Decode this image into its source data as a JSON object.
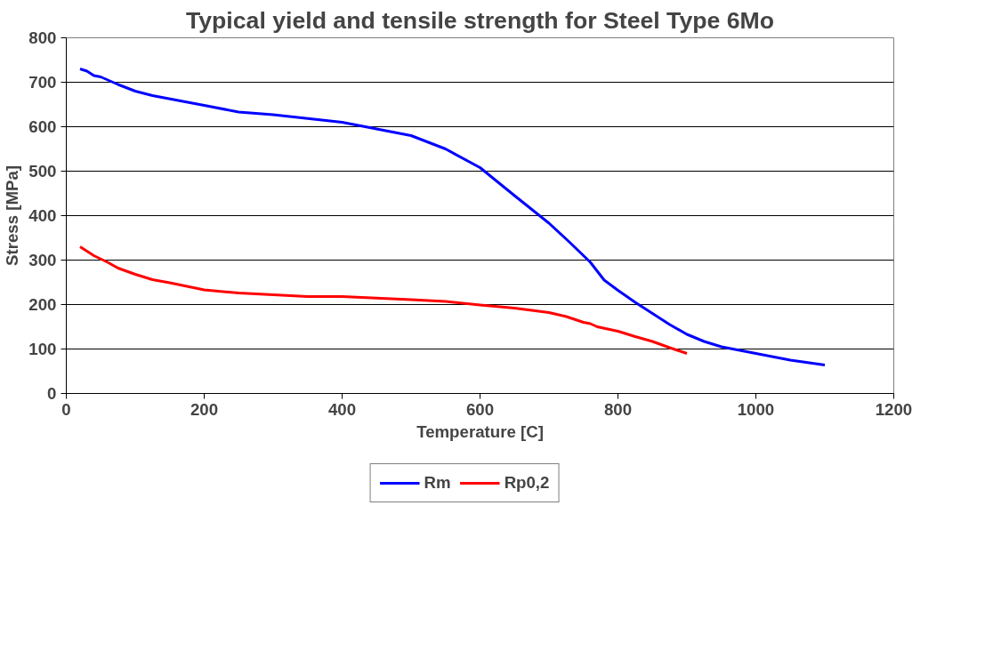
{
  "chart_data": {
    "type": "line",
    "title": "Typical yield and tensile strength for Steel Type 6Mo",
    "xlabel": "Temperature [C]",
    "ylabel": "Stress [MPa]",
    "xlim": [
      0,
      1200
    ],
    "xticks": [
      0,
      200,
      400,
      600,
      800,
      1000,
      1200
    ],
    "ylim": [
      0,
      800
    ],
    "yticks": [
      0,
      100,
      200,
      300,
      400,
      500,
      600,
      700,
      800
    ],
    "grid": "y",
    "legend": "bottom",
    "marker": "none",
    "line_style": "solid",
    "series": [
      {
        "name": "Rm",
        "color": "#0000ff",
        "x": [
          20,
          30,
          40,
          50,
          75,
          100,
          125,
          200,
          250,
          300,
          400,
          450,
          500,
          550,
          600,
          650,
          700,
          730,
          760,
          780,
          800,
          825,
          850,
          875,
          900,
          925,
          950,
          1000,
          1050,
          1100
        ],
        "values": [
          730,
          725,
          715,
          712,
          695,
          680,
          670,
          648,
          633,
          627,
          610,
          595,
          580,
          550,
          508,
          445,
          383,
          340,
          295,
          255,
          232,
          205,
          180,
          155,
          133,
          117,
          105,
          90,
          75,
          64
        ]
      },
      {
        "name": "Rp0,2",
        "color": "#ff0000",
        "x": [
          20,
          40,
          60,
          75,
          100,
          125,
          150,
          200,
          250,
          300,
          350,
          400,
          500,
          550,
          600,
          650,
          700,
          725,
          750,
          760,
          770,
          800,
          825,
          850,
          875,
          900
        ],
        "values": [
          330,
          310,
          295,
          282,
          268,
          256,
          249,
          233,
          226,
          222,
          218,
          218,
          211,
          207,
          199,
          192,
          182,
          173,
          160,
          157,
          150,
          140,
          128,
          117,
          103,
          90
        ]
      }
    ]
  }
}
